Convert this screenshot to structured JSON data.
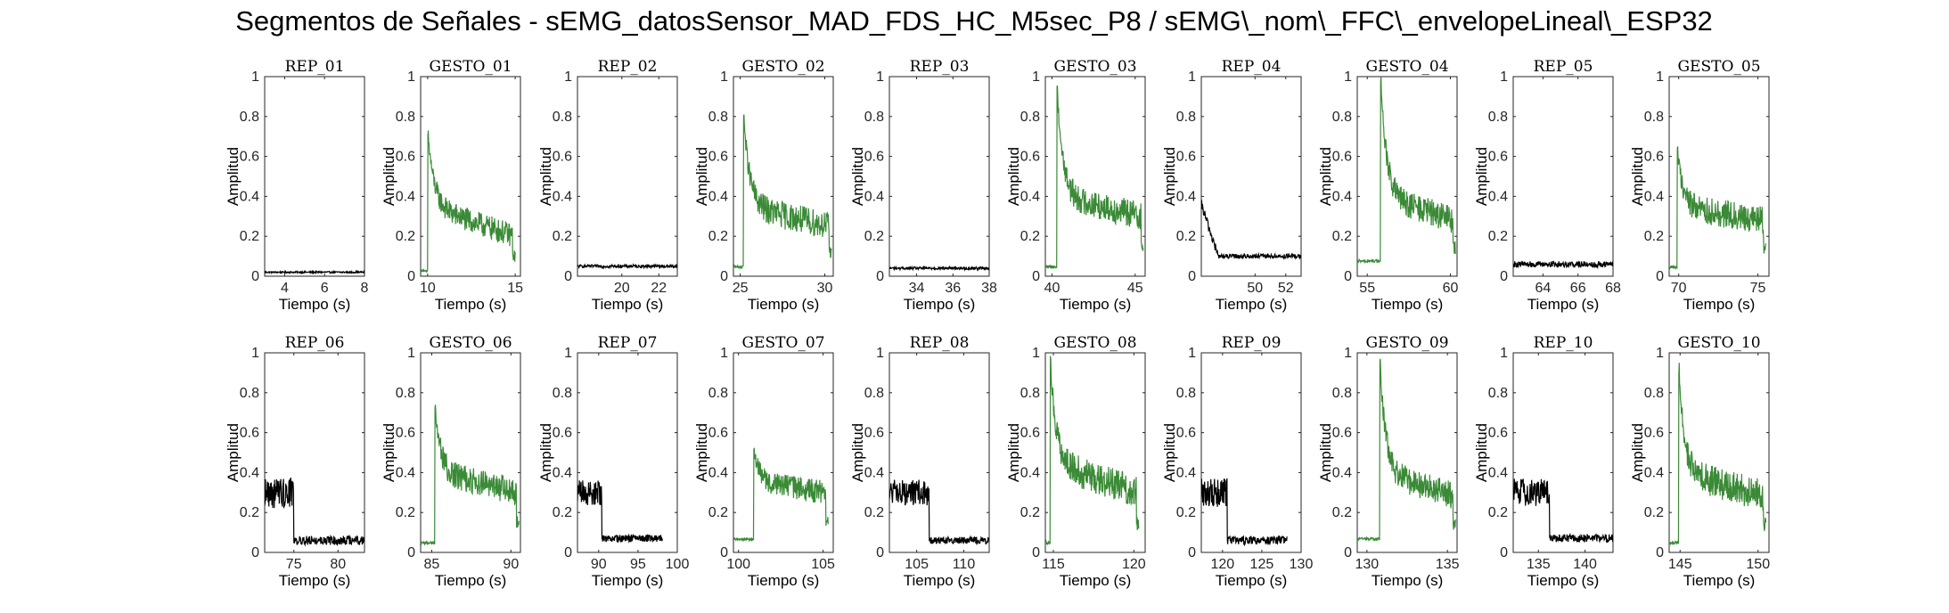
{
  "figure_title": "Segmentos de Señales - sEMG_datosSensor_MAD_FDS_HC_M5sec_P8 / sEMG\\_nom\\_FFC\\_envelopeLineal\\_ESP32",
  "colors": {
    "rep": "#000000",
    "gesto": "#3a8a36",
    "axis": "#262626"
  },
  "chart_data": [
    {
      "type": "line",
      "title": "REP_01",
      "xlabel": "Tiempo (s)",
      "ylabel": "Amplitud",
      "xlim": [
        3,
        8
      ],
      "xticks": [
        4,
        6,
        8
      ],
      "ylim": [
        0,
        1
      ],
      "yticks": [
        0,
        0.2,
        0.4,
        0.6,
        0.8,
        1
      ],
      "series_color": "rep",
      "profile": {
        "base": 0.02,
        "noise": 0.004
      }
    },
    {
      "type": "line",
      "title": "GESTO_01",
      "xlabel": "Tiempo (s)",
      "ylabel": "Amplitud",
      "xlim": [
        9.6,
        15.3
      ],
      "xticks": [
        10,
        15
      ],
      "ylim": [
        0,
        1
      ],
      "yticks": [
        0,
        0.2,
        0.4,
        0.6,
        0.8,
        1
      ],
      "series_color": "gesto",
      "profile": {
        "pre": 0.02,
        "onset": 10.0,
        "peak": 0.73,
        "level": 0.35,
        "end_level": 0.2,
        "noise": 0.06,
        "end": 15.0
      }
    },
    {
      "type": "line",
      "title": "REP_02",
      "xlabel": "Tiempo (s)",
      "ylabel": "Amplitud",
      "xlim": [
        17.6,
        23
      ],
      "xticks": [
        20,
        22
      ],
      "ylim": [
        0,
        1
      ],
      "yticks": [
        0,
        0.2,
        0.4,
        0.6,
        0.8,
        1
      ],
      "series_color": "rep",
      "profile": {
        "base": 0.05,
        "noise": 0.008
      }
    },
    {
      "type": "line",
      "title": "GESTO_02",
      "xlabel": "Tiempo (s)",
      "ylabel": "Amplitud",
      "xlim": [
        24.6,
        30.5
      ],
      "xticks": [
        25,
        30
      ],
      "ylim": [
        0,
        1
      ],
      "yticks": [
        0,
        0.2,
        0.4,
        0.6,
        0.8,
        1
      ],
      "series_color": "gesto",
      "profile": {
        "pre": 0.04,
        "onset": 25.2,
        "peak": 0.81,
        "level": 0.35,
        "end_level": 0.25,
        "noise": 0.07,
        "end": 30.4
      }
    },
    {
      "type": "line",
      "title": "REP_03",
      "xlabel": "Tiempo (s)",
      "ylabel": "Amplitud",
      "xlim": [
        32.5,
        38
      ],
      "xticks": [
        34,
        36,
        38
      ],
      "ylim": [
        0,
        1
      ],
      "yticks": [
        0,
        0.2,
        0.4,
        0.6,
        0.8,
        1
      ],
      "series_color": "rep",
      "profile": {
        "base": 0.04,
        "noise": 0.007
      }
    },
    {
      "type": "line",
      "title": "GESTO_03",
      "xlabel": "Tiempo (s)",
      "ylabel": "Amplitud",
      "xlim": [
        39.6,
        45.6
      ],
      "xticks": [
        40,
        45
      ],
      "ylim": [
        0,
        1
      ],
      "yticks": [
        0,
        0.2,
        0.4,
        0.6,
        0.8,
        1
      ],
      "series_color": "gesto",
      "profile": {
        "pre": 0.04,
        "onset": 40.3,
        "peak": 0.95,
        "level": 0.4,
        "end_level": 0.3,
        "noise": 0.07,
        "end": 45.5
      }
    },
    {
      "type": "line",
      "title": "REP_04",
      "xlabel": "Tiempo (s)",
      "ylabel": "Amplitud",
      "xlim": [
        46.5,
        53
      ],
      "xticks": [
        50,
        52
      ],
      "ylim": [
        0,
        1
      ],
      "yticks": [
        0,
        0.2,
        0.4,
        0.6,
        0.8,
        1
      ],
      "series_color": "rep",
      "profile": {
        "start": 0.36,
        "drop_at": 47.6,
        "base": 0.1,
        "noise": 0.025
      }
    },
    {
      "type": "line",
      "title": "GESTO_04",
      "xlabel": "Tiempo (s)",
      "ylabel": "Amplitud",
      "xlim": [
        54.4,
        60.4
      ],
      "xticks": [
        55,
        60
      ],
      "ylim": [
        0,
        1
      ],
      "yticks": [
        0,
        0.2,
        0.4,
        0.6,
        0.8,
        1
      ],
      "series_color": "gesto",
      "profile": {
        "pre": 0.07,
        "onset": 55.8,
        "peak": 1.0,
        "level": 0.4,
        "end_level": 0.28,
        "noise": 0.07,
        "end": 60.3
      }
    },
    {
      "type": "line",
      "title": "REP_05",
      "xlabel": "Tiempo (s)",
      "ylabel": "Amplitud",
      "xlim": [
        62.3,
        68
      ],
      "xticks": [
        64,
        66,
        68
      ],
      "ylim": [
        0,
        1
      ],
      "yticks": [
        0,
        0.2,
        0.4,
        0.6,
        0.8,
        1
      ],
      "series_color": "rep",
      "profile": {
        "base": 0.06,
        "noise": 0.015
      }
    },
    {
      "type": "line",
      "title": "GESTO_05",
      "xlabel": "Tiempo (s)",
      "ylabel": "Amplitud",
      "xlim": [
        69.4,
        75.7
      ],
      "xticks": [
        70,
        75
      ],
      "ylim": [
        0,
        1
      ],
      "yticks": [
        0,
        0.2,
        0.4,
        0.6,
        0.8,
        1
      ],
      "series_color": "gesto",
      "profile": {
        "pre": 0.04,
        "onset": 69.9,
        "peak": 0.65,
        "level": 0.35,
        "end_level": 0.28,
        "noise": 0.07,
        "end": 75.5
      }
    },
    {
      "type": "line",
      "title": "REP_06",
      "xlabel": "Tiempo (s)",
      "ylabel": "Amplitud",
      "xlim": [
        71.7,
        83
      ],
      "xticks": [
        75,
        80
      ],
      "ylim": [
        0,
        1
      ],
      "yticks": [
        0,
        0.2,
        0.4,
        0.6,
        0.8,
        1
      ],
      "series_color": "rep",
      "profile": {
        "active": 0.3,
        "drop_at": 75.0,
        "base": 0.06,
        "noise": 0.05
      }
    },
    {
      "type": "line",
      "title": "GESTO_06",
      "xlabel": "Tiempo (s)",
      "ylabel": "Amplitud",
      "xlim": [
        84.3,
        90.6
      ],
      "xticks": [
        85,
        90
      ],
      "ylim": [
        0,
        1
      ],
      "yticks": [
        0,
        0.2,
        0.4,
        0.6,
        0.8,
        1
      ],
      "series_color": "gesto",
      "profile": {
        "pre": 0.04,
        "onset": 85.2,
        "peak": 0.74,
        "level": 0.4,
        "end_level": 0.3,
        "noise": 0.07,
        "end": 90.5
      }
    },
    {
      "type": "line",
      "title": "REP_07",
      "xlabel": "Tiempo (s)",
      "ylabel": "Amplitud",
      "xlim": [
        87.3,
        100
      ],
      "xticks": [
        90,
        95,
        100
      ],
      "ylim": [
        0,
        1
      ],
      "yticks": [
        0,
        0.2,
        0.4,
        0.6,
        0.8,
        1
      ],
      "series_color": "rep",
      "profile": {
        "active": 0.3,
        "drop_at": 90.4,
        "base": 0.07,
        "noise": 0.04,
        "end": 98.1
      }
    },
    {
      "type": "line",
      "title": "GESTO_07",
      "xlabel": "Tiempo (s)",
      "ylabel": "Amplitud",
      "xlim": [
        99.7,
        105.6
      ],
      "xticks": [
        100,
        105
      ],
      "ylim": [
        0,
        1
      ],
      "yticks": [
        0,
        0.2,
        0.4,
        0.6,
        0.8,
        1
      ],
      "series_color": "gesto",
      "profile": {
        "pre": 0.06,
        "onset": 100.9,
        "peak": 0.52,
        "level": 0.35,
        "end_level": 0.3,
        "noise": 0.06,
        "end": 105.3
      }
    },
    {
      "type": "line",
      "title": "REP_08",
      "xlabel": "Tiempo (s)",
      "ylabel": "Amplitud",
      "xlim": [
        102.1,
        112.7
      ],
      "xticks": [
        105,
        110
      ],
      "ylim": [
        0,
        1
      ],
      "yticks": [
        0,
        0.2,
        0.4,
        0.6,
        0.8,
        1
      ],
      "series_color": "rep",
      "profile": {
        "active": 0.3,
        "drop_at": 106.3,
        "base": 0.06,
        "noise": 0.04
      }
    },
    {
      "type": "line",
      "title": "GESTO_08",
      "xlabel": "Tiempo (s)",
      "ylabel": "Amplitud",
      "xlim": [
        114.5,
        120.7
      ],
      "xticks": [
        115,
        120
      ],
      "ylim": [
        0,
        1
      ],
      "yticks": [
        0,
        0.2,
        0.4,
        0.6,
        0.8,
        1
      ],
      "series_color": "gesto",
      "profile": {
        "pre": 0.04,
        "onset": 114.8,
        "peak": 0.97,
        "level": 0.45,
        "end_level": 0.3,
        "noise": 0.08,
        "end": 120.3
      }
    },
    {
      "type": "line",
      "title": "REP_09",
      "xlabel": "Tiempo (s)",
      "ylabel": "Amplitud",
      "xlim": [
        117.3,
        130
      ],
      "xticks": [
        120,
        125,
        130
      ],
      "ylim": [
        0,
        1
      ],
      "yticks": [
        0,
        0.2,
        0.4,
        0.6,
        0.8,
        1
      ],
      "series_color": "rep",
      "profile": {
        "active": 0.3,
        "drop_at": 120.6,
        "base": 0.06,
        "noise": 0.045,
        "end": 128.2
      }
    },
    {
      "type": "line",
      "title": "GESTO_09",
      "xlabel": "Tiempo (s)",
      "ylabel": "Amplitud",
      "xlim": [
        129.4,
        135.6
      ],
      "xticks": [
        130,
        135
      ],
      "ylim": [
        0,
        1
      ],
      "yticks": [
        0,
        0.2,
        0.4,
        0.6,
        0.8,
        1
      ],
      "series_color": "gesto",
      "profile": {
        "pre": 0.06,
        "onset": 130.8,
        "peak": 0.97,
        "level": 0.4,
        "end_level": 0.28,
        "noise": 0.07,
        "end": 135.5
      }
    },
    {
      "type": "line",
      "title": "REP_10",
      "xlabel": "Tiempo (s)",
      "ylabel": "Amplitud",
      "xlim": [
        132.3,
        143
      ],
      "xticks": [
        135,
        140
      ],
      "ylim": [
        0,
        1
      ],
      "yticks": [
        0,
        0.2,
        0.4,
        0.6,
        0.8,
        1
      ],
      "series_color": "rep",
      "profile": {
        "active": 0.3,
        "drop_at": 136.2,
        "base": 0.07,
        "noise": 0.045
      }
    },
    {
      "type": "line",
      "title": "GESTO_10",
      "xlabel": "Tiempo (s)",
      "ylabel": "Amplitud",
      "xlim": [
        144.3,
        150.7
      ],
      "xticks": [
        145,
        150
      ],
      "ylim": [
        0,
        1
      ],
      "yticks": [
        0,
        0.2,
        0.4,
        0.6,
        0.8,
        1
      ],
      "series_color": "gesto",
      "profile": {
        "pre": 0.04,
        "onset": 144.9,
        "peak": 0.95,
        "level": 0.4,
        "end_level": 0.28,
        "noise": 0.08,
        "end": 150.5
      }
    }
  ]
}
